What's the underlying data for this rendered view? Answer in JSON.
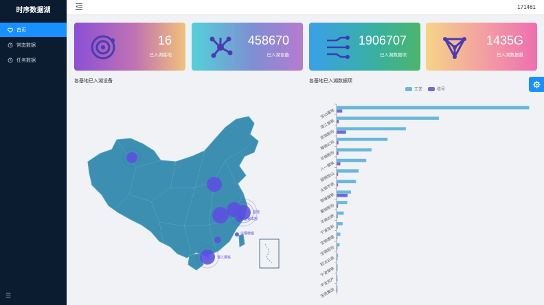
{
  "app": {
    "title": "时序数据湖"
  },
  "sidebar": {
    "items": [
      {
        "label": "首页",
        "icon": "heart-icon",
        "active": true
      },
      {
        "label": "常态数据",
        "icon": "clock-icon",
        "active": false
      },
      {
        "label": "任务数据",
        "icon": "clock-icon",
        "active": false
      }
    ]
  },
  "header": {
    "user": "171461"
  },
  "stats": [
    {
      "value": "16",
      "label": "已入湖基地",
      "icon": "target-icon"
    },
    {
      "value": "458670",
      "label": "已入湖设备",
      "icon": "network-icon"
    },
    {
      "value": "1906707",
      "label": "已入湖数据项",
      "icon": "circuit-icon"
    },
    {
      "value": "1435G",
      "label": "已入湖数据量",
      "icon": "triangle-network-icon"
    }
  ],
  "map_panel": {
    "title": "各基地已入湖设备",
    "markers": [
      {
        "label": ""
      },
      {
        "label": ""
      },
      {
        "label": ""
      },
      {
        "label": ""
      },
      {
        "label": "基地"
      },
      {
        "label": "宝钢本部"
      },
      {
        "label": ""
      },
      {
        "label": "宝钢德盛"
      },
      {
        "label": "湛江钢铁"
      }
    ]
  },
  "colors": {
    "accent": "#1890ff",
    "sidebar_bg": "#0b1c30",
    "map_fill": "#3c8fb0",
    "marker": "#5b4fe0",
    "series_1": "#6ab7db",
    "series_2": "#6f6bd8"
  },
  "chart_data": {
    "type": "bar",
    "orientation": "horizontal",
    "title": "各基地已入湖数据项",
    "legend_position": "top",
    "categories": [
      "宝山基地",
      "湛江钢铁",
      "武钢股份",
      "梅钢公司",
      "马钢股份",
      "八一钢铁",
      "韶钢松山",
      "太钢不锈",
      "鄂城钢铁",
      "重钢股份",
      "马钢合肥",
      "宁波宝新",
      "宝钢德盛",
      "宝钢股份",
      "欧冶云商",
      "宁波钢铁",
      "华宝资产",
      "宝武集团"
    ],
    "series": [
      {
        "name": "工艺",
        "values": [
          505000,
          268000,
          181000,
          133000,
          91000,
          77000,
          57000,
          50000,
          37000,
          27000,
          18000,
          15000,
          9000,
          7000,
          3000,
          2000,
          1500,
          1000
        ]
      },
      {
        "name": "信号",
        "values": [
          14000,
          5000,
          24000,
          4000,
          4000,
          9000,
          3000,
          3000,
          28000,
          3000,
          2000,
          2000,
          1000,
          1000,
          500,
          300,
          200,
          100
        ]
      }
    ]
  }
}
